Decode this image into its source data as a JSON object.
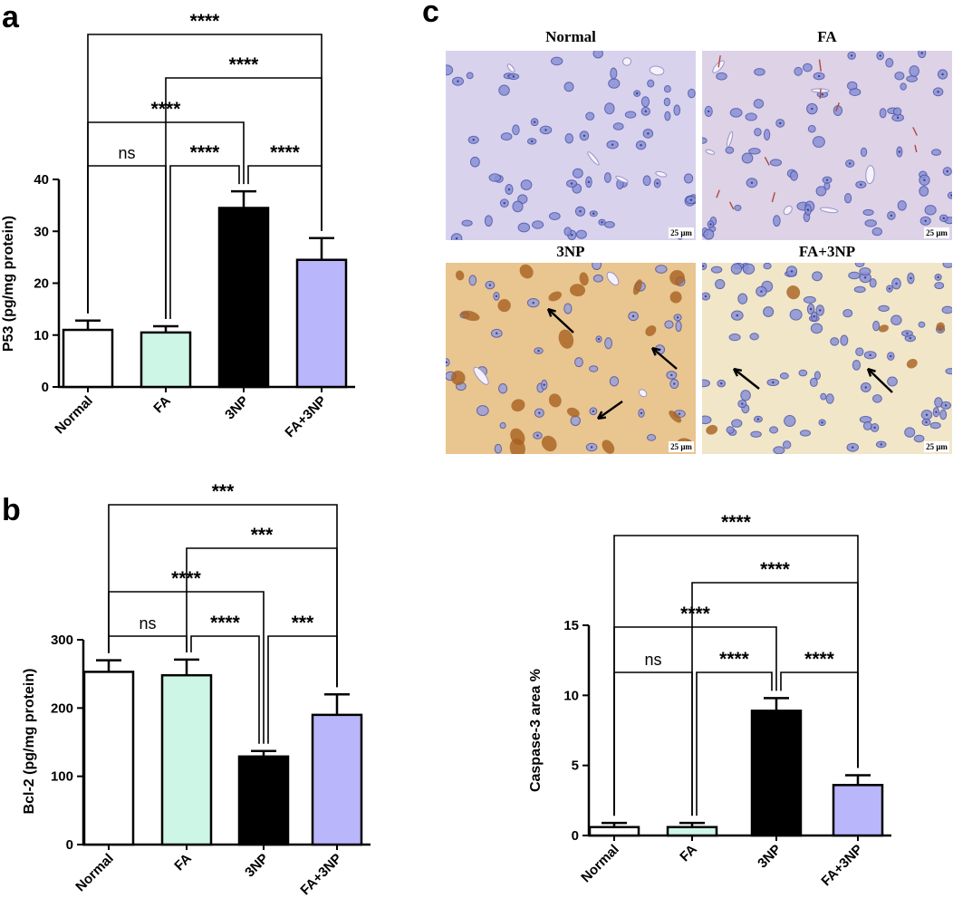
{
  "panels": {
    "a": "a",
    "b": "b",
    "c": "c"
  },
  "colors": {
    "Normal": "#ffffff",
    "FA": "#cdf6e6",
    "3NP": "#000000",
    "FA+3NP": "#b9b6fb",
    "he_bg": "#d9d2ec",
    "he_cell": "#6f78c4",
    "ihc_bg": "#e9c590",
    "ihc_stain": "#a6601f",
    "ihc_light_bg": "#f1e6c8"
  },
  "micrographs": {
    "titles": [
      "Normal",
      "FA",
      "3NP",
      "FA+3NP"
    ],
    "scale_label": "25 μm"
  },
  "chart_data": [
    {
      "panel": "a",
      "type": "bar",
      "categories": [
        "Normal",
        "FA",
        "3NP",
        "FA+3NP"
      ],
      "values": [
        11.0,
        10.5,
        34.5,
        24.5
      ],
      "errors": [
        1.8,
        1.2,
        3.2,
        4.2
      ],
      "ylabel": "P53 (pg/mg protein)",
      "ylim": [
        0,
        40
      ],
      "yticks": [
        0,
        10,
        20,
        30,
        40
      ],
      "significance": [
        {
          "from": "Normal",
          "to": "FA+3NP",
          "label": "****"
        },
        {
          "from": "FA",
          "to": "FA+3NP",
          "label": "****"
        },
        {
          "from": "Normal",
          "to": "3NP",
          "label": "****"
        },
        {
          "from": "Normal",
          "to": "FA",
          "label": "ns"
        },
        {
          "from": "FA",
          "to": "3NP",
          "label": "****"
        },
        {
          "from": "3NP",
          "to": "FA+3NP",
          "label": "****"
        }
      ]
    },
    {
      "panel": "b",
      "type": "bar",
      "categories": [
        "Normal",
        "FA",
        "3NP",
        "FA+3NP"
      ],
      "values": [
        253,
        248,
        129,
        190
      ],
      "errors": [
        17,
        23,
        8,
        30
      ],
      "ylabel": "Bcl-2 (pg/mg protein)",
      "ylim": [
        0,
        300
      ],
      "yticks": [
        0,
        100,
        200,
        300
      ],
      "significance": [
        {
          "from": "Normal",
          "to": "FA+3NP",
          "label": "***"
        },
        {
          "from": "FA",
          "to": "FA+3NP",
          "label": "***"
        },
        {
          "from": "Normal",
          "to": "3NP",
          "label": "****"
        },
        {
          "from": "Normal",
          "to": "FA",
          "label": "ns"
        },
        {
          "from": "FA",
          "to": "3NP",
          "label": "****"
        },
        {
          "from": "3NP",
          "to": "FA+3NP",
          "label": "***"
        }
      ]
    },
    {
      "panel": "c",
      "type": "bar",
      "categories": [
        "Normal",
        "FA",
        "3NP",
        "FA+3NP"
      ],
      "values": [
        0.6,
        0.6,
        8.9,
        3.6
      ],
      "errors": [
        0.3,
        0.3,
        0.9,
        0.7
      ],
      "ylabel": "Caspase-3 area %",
      "ylim": [
        0,
        15
      ],
      "yticks": [
        0,
        5,
        10,
        15
      ],
      "significance": [
        {
          "from": "Normal",
          "to": "FA+3NP",
          "label": "****"
        },
        {
          "from": "FA",
          "to": "FA+3NP",
          "label": "****"
        },
        {
          "from": "Normal",
          "to": "3NP",
          "label": "****"
        },
        {
          "from": "Normal",
          "to": "FA",
          "label": "ns"
        },
        {
          "from": "FA",
          "to": "3NP",
          "label": "****"
        },
        {
          "from": "3NP",
          "to": "FA+3NP",
          "label": "****"
        }
      ]
    }
  ]
}
